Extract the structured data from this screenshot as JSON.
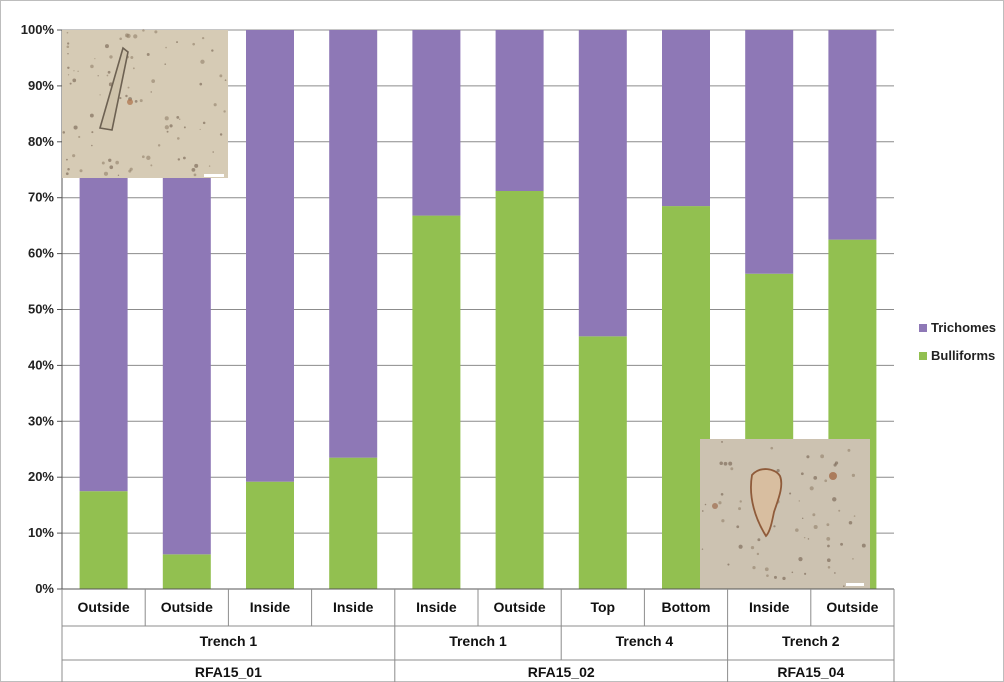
{
  "chart_data": {
    "type": "bar",
    "stacked": true,
    "categories": [
      "Outside",
      "Outside",
      "Inside",
      "Inside",
      "Inside",
      "Outside",
      "Top",
      "Bottom",
      "Inside",
      "Outside"
    ],
    "group_level1": [
      {
        "label": "Trench 1",
        "span": 4
      },
      {
        "label": "Trench 1",
        "span": 2
      },
      {
        "label": "Trench 4",
        "span": 2
      },
      {
        "label": "Trench 2",
        "span": 2
      }
    ],
    "group_level2": [
      {
        "label": "RFA15_01",
        "span": 4
      },
      {
        "label": "RFA15_02",
        "span": 4
      },
      {
        "label": "RFA15_04",
        "span": 2
      }
    ],
    "series": [
      {
        "name": "Bulliforms",
        "color": "#92c050",
        "values": [
          17.5,
          6.2,
          19.2,
          23.5,
          66.8,
          71.2,
          45.2,
          68.5,
          56.4,
          62.5
        ]
      },
      {
        "name": "Trichomes",
        "color": "#8e78b6",
        "values": [
          82.5,
          93.8,
          80.8,
          76.5,
          33.2,
          28.8,
          54.8,
          31.5,
          43.6,
          37.5
        ]
      }
    ],
    "legend_order": [
      "Trichomes",
      "Bulliforms"
    ],
    "ylim": [
      0,
      100
    ],
    "yticks": [
      "0%",
      "10%",
      "20%",
      "30%",
      "40%",
      "50%",
      "60%",
      "70%",
      "80%",
      "90%",
      "100%"
    ],
    "grid": true,
    "legend_position": "right"
  },
  "insets": [
    {
      "name": "trichome-micrograph"
    },
    {
      "name": "bulliform-micrograph"
    }
  ]
}
